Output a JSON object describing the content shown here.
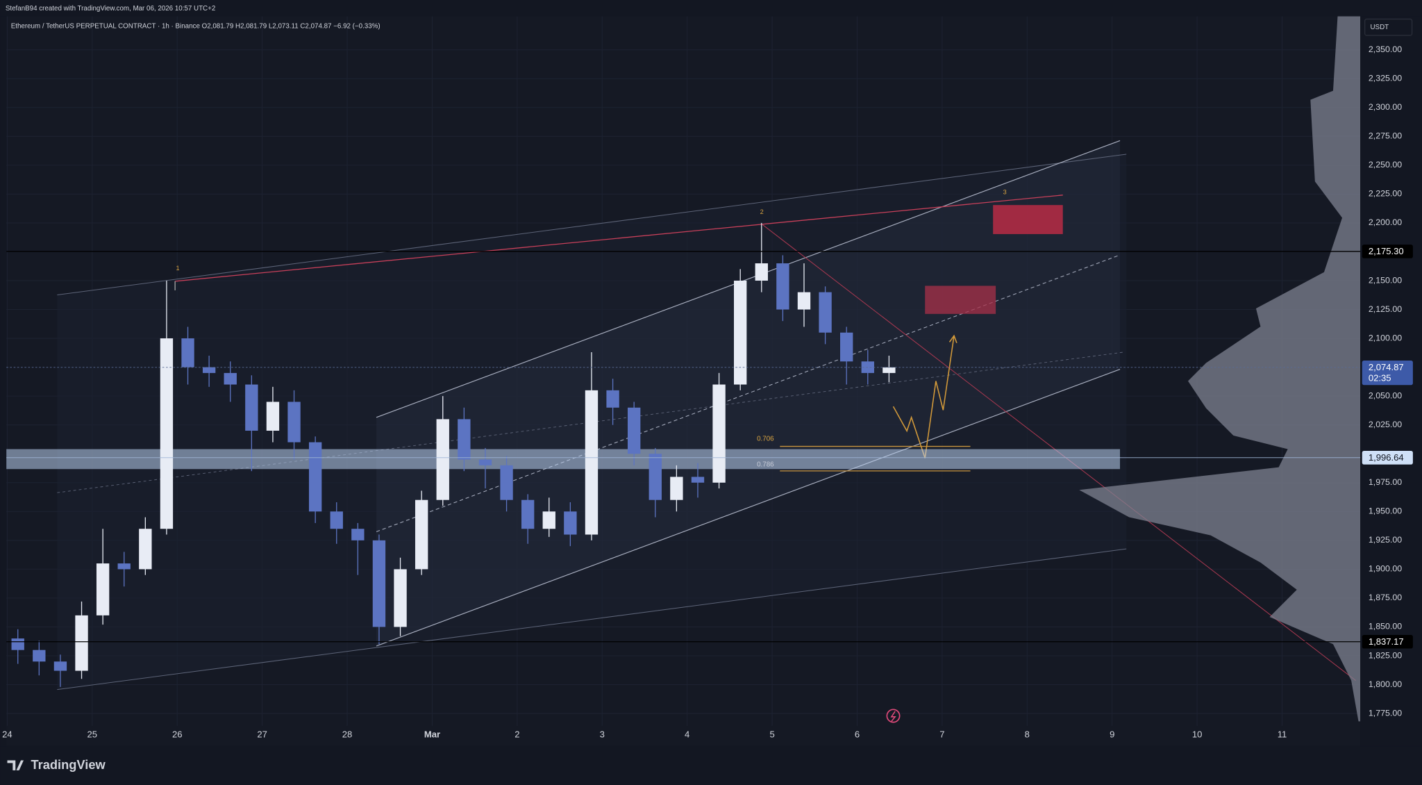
{
  "header": {
    "credit": "StefanB94 created with TradingView.com, Mar 06, 2026 10:57 UTC+2"
  },
  "footer": {
    "brand": "TradingView"
  },
  "chart_data": {
    "type": "candlestick",
    "title": "Ethereum / TetherUS PERPETUAL CONTRACT · 1h · Binance  O2,081.79 H2,081.79 L2,073.11 C2,074.87 −6.92 (−0.33%)",
    "currency": "USDT",
    "up_color": "#e8ecf5",
    "down_color": "#5c74c2",
    "x": [
      0.125,
      0.375,
      0.625,
      0.875,
      1.125,
      1.375,
      1.625,
      1.875,
      2.125,
      2.375,
      2.625,
      2.875,
      3.125,
      3.375,
      3.625,
      3.875,
      4.125,
      4.375,
      4.625,
      4.875,
      5.125,
      5.375,
      5.625,
      5.875,
      6.125,
      6.375,
      6.625,
      6.875,
      7.125,
      7.375,
      7.625,
      7.875,
      8.125,
      8.375,
      8.625,
      8.875,
      9.125,
      9.375,
      9.625,
      9.875,
      10.125,
      10.375
    ],
    "open": [
      1840,
      1830,
      1820,
      1812,
      1860,
      1905,
      1900,
      1935,
      2100,
      2075,
      2070,
      2060,
      2020,
      2045,
      2010,
      1950,
      1935,
      1925,
      1850,
      1900,
      1960,
      2030,
      1995,
      1990,
      1960,
      1935,
      1950,
      1930,
      2055,
      2040,
      2000,
      1960,
      1980,
      1975,
      2060,
      2150,
      2165,
      2125,
      2140,
      2105,
      2080,
      2070
    ],
    "high": [
      1848,
      1838,
      1826,
      1872,
      1935,
      1915,
      1945,
      2150,
      2110,
      2085,
      2080,
      2068,
      2058,
      2055,
      2015,
      1958,
      1940,
      1930,
      1910,
      1968,
      2050,
      2040,
      2005,
      1998,
      1965,
      1962,
      1958,
      2088,
      2065,
      2045,
      2005,
      1990,
      1992,
      2070,
      2160,
      2200,
      2172,
      2165,
      2145,
      2110,
      2090,
      2085
    ],
    "low": [
      1818,
      1808,
      1798,
      1805,
      1852,
      1885,
      1895,
      1930,
      2060,
      2058,
      2045,
      1985,
      2010,
      1995,
      1940,
      1922,
      1895,
      1835,
      1842,
      1895,
      1955,
      1985,
      1970,
      1950,
      1922,
      1928,
      1920,
      1925,
      2025,
      1990,
      1945,
      1950,
      1962,
      1970,
      2055,
      2140,
      2115,
      2110,
      2095,
      2060,
      2060,
      2062
    ],
    "close": [
      1830,
      1820,
      1812,
      1860,
      1905,
      1900,
      1935,
      2100,
      2075,
      2070,
      2060,
      2020,
      2045,
      2010,
      1950,
      1935,
      1925,
      1850,
      1900,
      1960,
      2030,
      1995,
      1990,
      1960,
      1935,
      1950,
      1930,
      2055,
      2040,
      2000,
      1960,
      1980,
      1975,
      2060,
      2150,
      2165,
      2125,
      2140,
      2105,
      2080,
      2070,
      2074.87
    ],
    "xlim": [
      -0.01,
      15.92
    ],
    "xticks": [
      {
        "value": 0,
        "label": "24"
      },
      {
        "value": 1,
        "label": "25"
      },
      {
        "value": 2,
        "label": "26"
      },
      {
        "value": 3,
        "label": "27"
      },
      {
        "value": 4,
        "label": "28"
      },
      {
        "value": 5,
        "label": "Mar"
      },
      {
        "value": 6,
        "label": "2"
      },
      {
        "value": 7,
        "label": "3"
      },
      {
        "value": 8,
        "label": "4"
      },
      {
        "value": 9,
        "label": "5"
      },
      {
        "value": 10,
        "label": "6"
      },
      {
        "value": 11,
        "label": "7"
      },
      {
        "value": 12,
        "label": "8"
      },
      {
        "value": 13,
        "label": "9"
      },
      {
        "value": 14,
        "label": "10"
      },
      {
        "value": 15,
        "label": "11"
      }
    ],
    "ylim": [
      1747,
      2379
    ],
    "yticks": [
      {
        "value": 1775,
        "label": "1,775.00"
      },
      {
        "value": 1800,
        "label": "1,800.00"
      },
      {
        "value": 1825,
        "label": "1,825.00"
      },
      {
        "value": 1850,
        "label": "1,850.00"
      },
      {
        "value": 1875,
        "label": "1,875.00"
      },
      {
        "value": 1900,
        "label": "1,900.00"
      },
      {
        "value": 1925,
        "label": "1,925.00"
      },
      {
        "value": 1950,
        "label": "1,950.00"
      },
      {
        "value": 1975,
        "label": "1,975.00"
      },
      {
        "value": 2025,
        "label": "2,025.00"
      },
      {
        "value": 2050,
        "label": "2,050.00"
      },
      {
        "value": 2100,
        "label": "2,100.00"
      },
      {
        "value": 2125,
        "label": "2,125.00"
      },
      {
        "value": 2150,
        "label": "2,150.00"
      },
      {
        "value": 2200,
        "label": "2,200.00"
      },
      {
        "value": 2225,
        "label": "2,225.00"
      },
      {
        "value": 2250,
        "label": "2,250.00"
      },
      {
        "value": 2275,
        "label": "2,275.00"
      },
      {
        "value": 2300,
        "label": "2,300.00"
      },
      {
        "value": 2325,
        "label": "2,325.00"
      },
      {
        "value": 2350,
        "label": "2,350.00"
      }
    ],
    "grid": true,
    "price_lines": [
      {
        "value": 2175.3,
        "label": "2,175.30",
        "color": "#000000"
      },
      {
        "value": 2074.87,
        "label": "2,074.87",
        "color": "#3d5aa8"
      },
      {
        "value": 1996.64,
        "label": "1,996.64",
        "color": "#cfe0f7"
      },
      {
        "value": 1837.17,
        "label": "1,837.17",
        "color": "#000000"
      }
    ],
    "countdown": "02:35",
    "annotations": {
      "wave_1": "1",
      "wave_2": "2",
      "wave_3": "3",
      "fib_1": "0.706",
      "fib_2": "0.786"
    }
  }
}
